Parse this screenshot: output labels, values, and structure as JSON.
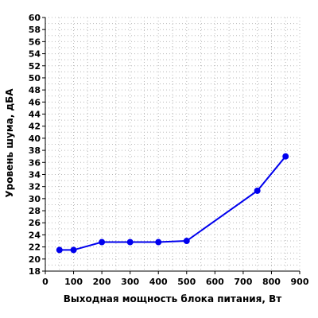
{
  "chart_data": {
    "type": "line",
    "title": "",
    "xlabel": "Выходная мощность блока питания, Вт",
    "ylabel": "Уровень шума, дБА",
    "xlim": [
      0,
      900
    ],
    "ylim": [
      18,
      60
    ],
    "x_ticks": [
      0,
      100,
      200,
      300,
      400,
      500,
      600,
      700,
      800,
      900
    ],
    "y_ticks": [
      18,
      20,
      22,
      24,
      26,
      28,
      30,
      32,
      34,
      36,
      38,
      40,
      42,
      44,
      46,
      48,
      50,
      52,
      54,
      56,
      58,
      60
    ],
    "grid": true,
    "legend": "none",
    "series": [
      {
        "color": "#0000ee",
        "x": [
          50,
          100,
          200,
          300,
          400,
          500,
          750,
          850
        ],
        "y": [
          21.5,
          21.5,
          22.8,
          22.8,
          22.8,
          23.0,
          31.3,
          37.0
        ]
      }
    ]
  }
}
